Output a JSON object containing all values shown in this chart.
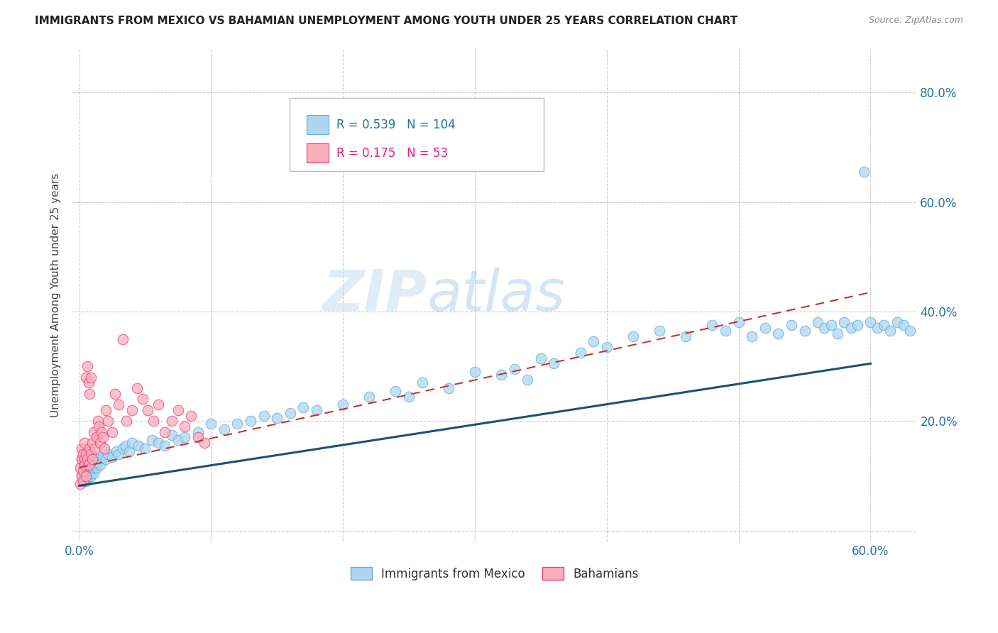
{
  "title": "IMMIGRANTS FROM MEXICO VS BAHAMIAN UNEMPLOYMENT AMONG YOUTH UNDER 25 YEARS CORRELATION CHART",
  "source": "Source: ZipAtlas.com",
  "ylabel": "Unemployment Among Youth under 25 years",
  "r1": 0.539,
  "n1": 104,
  "r2": 0.175,
  "n2": 53,
  "color_blue_fill": "#AED6F1",
  "color_blue_edge": "#5DADE2",
  "color_blue_line": "#1A5276",
  "color_blue_text": "#2471A3",
  "color_pink_fill": "#F9AEBA",
  "color_pink_edge": "#EC407A",
  "color_pink_line": "#C0392B",
  "color_pink_text": "#E91E8C",
  "background_color": "#ffffff",
  "grid_color": "#cccccc",
  "watermark_zip": "ZIP",
  "watermark_atlas": "atlas",
  "legend1_label": "Immigrants from Mexico",
  "legend2_label": "Bahamians",
  "x_lim": [
    -0.005,
    0.635
  ],
  "y_lim": [
    -0.02,
    0.88
  ],
  "blue_line_x": [
    0.0,
    0.6
  ],
  "blue_line_y": [
    0.082,
    0.305
  ],
  "pink_line_x": [
    0.0,
    0.6
  ],
  "pink_line_y": [
    0.115,
    0.435
  ],
  "blue_scatter_x": [
    0.002,
    0.002,
    0.003,
    0.003,
    0.003,
    0.004,
    0.004,
    0.004,
    0.004,
    0.005,
    0.005,
    0.005,
    0.005,
    0.006,
    0.006,
    0.006,
    0.006,
    0.007,
    0.007,
    0.007,
    0.008,
    0.008,
    0.008,
    0.009,
    0.009,
    0.009,
    0.01,
    0.01,
    0.011,
    0.011,
    0.012,
    0.013,
    0.014,
    0.015,
    0.016,
    0.018,
    0.02,
    0.022,
    0.025,
    0.028,
    0.03,
    0.033,
    0.035,
    0.038,
    0.04,
    0.045,
    0.05,
    0.055,
    0.06,
    0.065,
    0.07,
    0.075,
    0.08,
    0.09,
    0.1,
    0.11,
    0.12,
    0.13,
    0.14,
    0.15,
    0.16,
    0.17,
    0.18,
    0.2,
    0.22,
    0.24,
    0.25,
    0.26,
    0.28,
    0.3,
    0.32,
    0.33,
    0.34,
    0.35,
    0.36,
    0.38,
    0.39,
    0.4,
    0.42,
    0.44,
    0.46,
    0.48,
    0.49,
    0.5,
    0.51,
    0.52,
    0.53,
    0.54,
    0.55,
    0.56,
    0.565,
    0.57,
    0.575,
    0.58,
    0.585,
    0.59,
    0.595,
    0.6,
    0.605,
    0.61,
    0.615,
    0.62,
    0.625,
    0.63
  ],
  "blue_scatter_y": [
    0.1,
    0.13,
    0.09,
    0.11,
    0.14,
    0.095,
    0.115,
    0.105,
    0.125,
    0.1,
    0.09,
    0.12,
    0.11,
    0.1,
    0.115,
    0.095,
    0.105,
    0.11,
    0.1,
    0.12,
    0.105,
    0.115,
    0.125,
    0.1,
    0.11,
    0.12,
    0.11,
    0.125,
    0.105,
    0.115,
    0.12,
    0.115,
    0.125,
    0.13,
    0.12,
    0.135,
    0.13,
    0.14,
    0.135,
    0.145,
    0.14,
    0.15,
    0.155,
    0.145,
    0.16,
    0.155,
    0.15,
    0.165,
    0.16,
    0.155,
    0.175,
    0.165,
    0.17,
    0.18,
    0.195,
    0.185,
    0.195,
    0.2,
    0.21,
    0.205,
    0.215,
    0.225,
    0.22,
    0.23,
    0.245,
    0.255,
    0.245,
    0.27,
    0.26,
    0.29,
    0.285,
    0.295,
    0.275,
    0.315,
    0.305,
    0.325,
    0.345,
    0.335,
    0.355,
    0.365,
    0.355,
    0.375,
    0.365,
    0.38,
    0.355,
    0.37,
    0.36,
    0.375,
    0.365,
    0.38,
    0.37,
    0.375,
    0.36,
    0.38,
    0.37,
    0.375,
    0.655,
    0.38,
    0.37,
    0.375,
    0.365,
    0.38,
    0.375,
    0.365
  ],
  "pink_scatter_x": [
    0.001,
    0.001,
    0.002,
    0.002,
    0.002,
    0.003,
    0.003,
    0.003,
    0.004,
    0.004,
    0.004,
    0.005,
    0.005,
    0.005,
    0.006,
    0.006,
    0.007,
    0.007,
    0.008,
    0.008,
    0.009,
    0.009,
    0.01,
    0.01,
    0.011,
    0.012,
    0.013,
    0.014,
    0.015,
    0.016,
    0.017,
    0.018,
    0.019,
    0.02,
    0.022,
    0.025,
    0.027,
    0.03,
    0.033,
    0.036,
    0.04,
    0.044,
    0.048,
    0.052,
    0.056,
    0.06,
    0.065,
    0.07,
    0.075,
    0.08,
    0.085,
    0.09,
    0.095
  ],
  "pink_scatter_y": [
    0.115,
    0.085,
    0.15,
    0.1,
    0.13,
    0.11,
    0.14,
    0.09,
    0.13,
    0.16,
    0.12,
    0.14,
    0.1,
    0.28,
    0.3,
    0.13,
    0.27,
    0.12,
    0.15,
    0.25,
    0.14,
    0.28,
    0.13,
    0.16,
    0.18,
    0.15,
    0.17,
    0.2,
    0.19,
    0.16,
    0.18,
    0.17,
    0.15,
    0.22,
    0.2,
    0.18,
    0.25,
    0.23,
    0.35,
    0.2,
    0.22,
    0.26,
    0.24,
    0.22,
    0.2,
    0.23,
    0.18,
    0.2,
    0.22,
    0.19,
    0.21,
    0.17,
    0.16
  ]
}
